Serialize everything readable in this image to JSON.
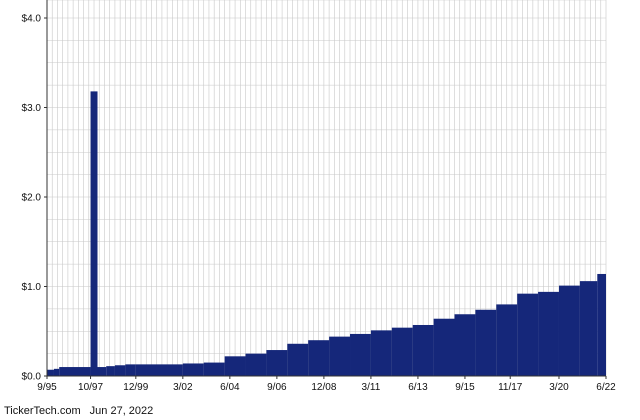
{
  "footer": {
    "brand": "TickerTech.com",
    "date": "Jun 27, 2022"
  },
  "colors": {
    "bar": "#15277a",
    "grid": "#c8c8c8",
    "axis": "#333333",
    "background": "#ffffff"
  },
  "chart_data": {
    "type": "bar",
    "title": "",
    "xlabel": "",
    "ylabel": "",
    "ylim": [
      0,
      4.0
    ],
    "y_ticks": [
      {
        "value": 0,
        "label": "$0.0"
      },
      {
        "value": 1,
        "label": "$1.0"
      },
      {
        "value": 2,
        "label": "$2.0"
      },
      {
        "value": 3,
        "label": "$3.0"
      },
      {
        "value": 4,
        "label": "$4.0"
      }
    ],
    "x_tick_labels": [
      "9/95",
      "10/97",
      "12/99",
      "3/02",
      "6/04",
      "9/06",
      "12/08",
      "3/11",
      "6/13",
      "9/15",
      "11/17",
      "3/20",
      "6/22"
    ],
    "grid": true,
    "segments": [
      {
        "from": "9/95",
        "to": "1/96",
        "value": 0.07
      },
      {
        "from": "1/96",
        "to": "4/96",
        "value": 0.08
      },
      {
        "from": "4/96",
        "to": "10/97",
        "value": 0.1
      },
      {
        "from": "10/97",
        "to": "2/98",
        "value": 3.18
      },
      {
        "from": "2/98",
        "to": "7/98",
        "value": 0.1
      },
      {
        "from": "7/98",
        "to": "12/98",
        "value": 0.11
      },
      {
        "from": "12/98",
        "to": "6/99",
        "value": 0.12
      },
      {
        "from": "6/99",
        "to": "12/99",
        "value": 0.13
      },
      {
        "from": "12/99",
        "to": "3/02",
        "value": 0.13
      },
      {
        "from": "3/02",
        "to": "3/03",
        "value": 0.14
      },
      {
        "from": "3/03",
        "to": "3/04",
        "value": 0.15
      },
      {
        "from": "3/04",
        "to": "3/05",
        "value": 0.22
      },
      {
        "from": "3/05",
        "to": "3/06",
        "value": 0.25
      },
      {
        "from": "3/06",
        "to": "3/07",
        "value": 0.29
      },
      {
        "from": "3/07",
        "to": "3/08",
        "value": 0.36
      },
      {
        "from": "3/08",
        "to": "3/09",
        "value": 0.4
      },
      {
        "from": "3/09",
        "to": "3/10",
        "value": 0.44
      },
      {
        "from": "3/10",
        "to": "3/11",
        "value": 0.47
      },
      {
        "from": "3/11",
        "to": "3/12",
        "value": 0.51
      },
      {
        "from": "3/12",
        "to": "3/13",
        "value": 0.54
      },
      {
        "from": "3/13",
        "to": "3/14",
        "value": 0.57
      },
      {
        "from": "3/14",
        "to": "3/15",
        "value": 0.64
      },
      {
        "from": "3/15",
        "to": "3/16",
        "value": 0.69
      },
      {
        "from": "3/16",
        "to": "3/17",
        "value": 0.74
      },
      {
        "from": "3/17",
        "to": "3/18",
        "value": 0.8
      },
      {
        "from": "3/18",
        "to": "3/19",
        "value": 0.92
      },
      {
        "from": "3/19",
        "to": "3/20",
        "value": 0.94
      },
      {
        "from": "3/20",
        "to": "3/21",
        "value": 1.01
      },
      {
        "from": "3/21",
        "to": "1/22",
        "value": 1.06
      },
      {
        "from": "1/22",
        "to": "6/22",
        "value": 1.14
      }
    ]
  }
}
